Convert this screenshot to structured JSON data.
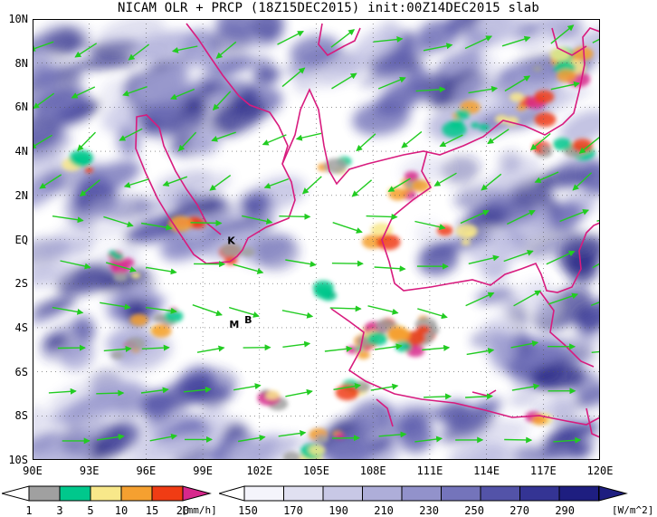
{
  "title": "NICAM OLR + PRCP (18Z15DEC2015) init:00Z14DEC2015 slab",
  "map": {
    "lat_labels": [
      "10N",
      "8N",
      "6N",
      "4N",
      "2N",
      "EQ",
      "2S",
      "4S",
      "6S",
      "8S",
      "10S"
    ],
    "lon_labels": [
      "90E",
      "93E",
      "96E",
      "99E",
      "102E",
      "105E",
      "108E",
      "111E",
      "114E",
      "117E",
      "120E"
    ],
    "lat_range": [
      -10,
      10
    ],
    "lon_range": [
      90,
      120
    ],
    "place_markers": [
      {
        "text": "K",
        "lon": 100.3,
        "lat": -0.2
      },
      {
        "text": "M",
        "lon": 100.4,
        "lat": -4.0
      },
      {
        "text": "B",
        "lon": 101.2,
        "lat": -3.8
      }
    ],
    "grid": "dotted"
  },
  "precip_legend": {
    "values": [
      "1",
      "3",
      "5",
      "10",
      "15",
      "20"
    ],
    "units": "[mm/h]",
    "colors": [
      "#a0a0a0",
      "#00c88c",
      "#f8e88a",
      "#f5a030",
      "#f03c14",
      "#d7288c"
    ]
  },
  "olr_legend": {
    "values": [
      "150",
      "170",
      "190",
      "210",
      "230",
      "250",
      "270",
      "290"
    ],
    "units": "[W/m^2]",
    "colors": [
      "#f4f4fb",
      "#e0e0f1",
      "#c8c8e6",
      "#aeaed9",
      "#9292cb",
      "#7474bb",
      "#5353a8",
      "#343494",
      "#1e1e80"
    ]
  },
  "colors": {
    "coastline": "#d81b7e",
    "wind_vector": "#22cc22",
    "olr_dark": "#2e2e8e"
  }
}
